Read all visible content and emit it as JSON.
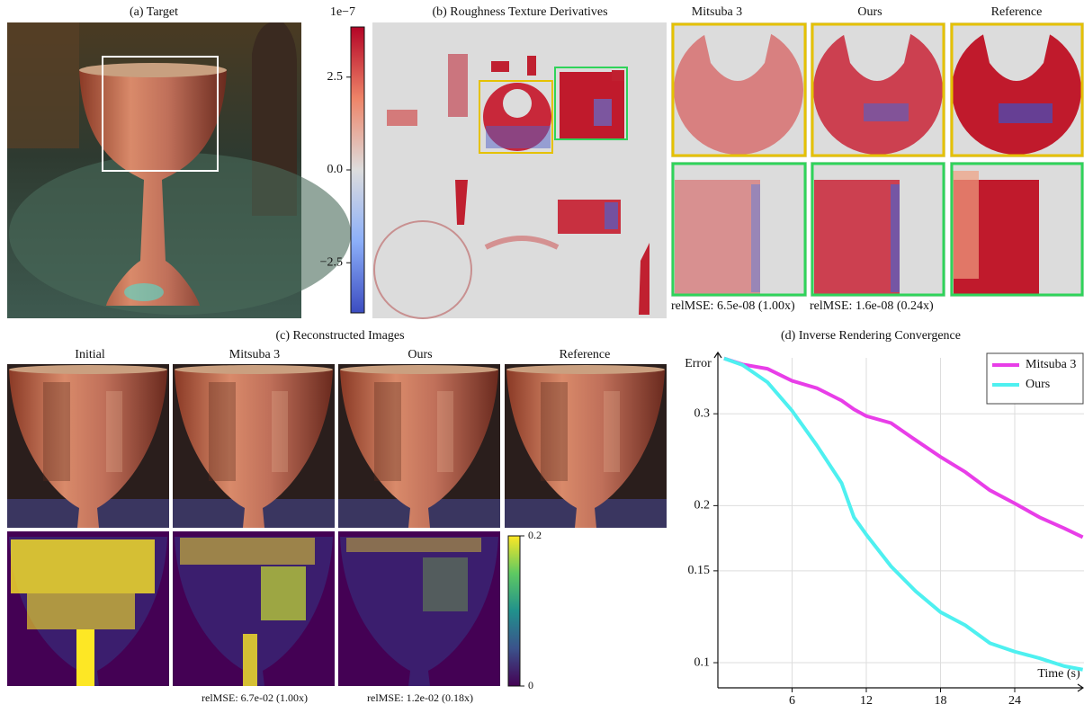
{
  "panels": {
    "target": {
      "title": "(a) Target"
    },
    "derivative_colorbar": {
      "label": "1e−7",
      "lim": [
        -3.85,
        3.85
      ],
      "ticks": [
        2.5,
        {
          "value": 0,
          "label": "0.0"
        },
        {
          "value": -2.5,
          "label": "−2.5"
        }
      ]
    },
    "derivatives": {
      "title": "(b) Roughness Texture Derivatives",
      "crop_columns": [
        "Mitsuba 3",
        "Ours",
        "Reference"
      ],
      "crop_metrics": [
        "relMSE: 6.5e-08 (1.00x)",
        "relMSE: 1.6e-08 (0.24x)"
      ]
    },
    "reconstruction": {
      "title": "(c) Reconstructed Images",
      "columns": [
        "Initial",
        "Mitsuba 3",
        "Ours",
        "Reference"
      ],
      "error_colorbar": {
        "lim": [
          0,
          0.2
        ],
        "ticks": [
          0.2,
          0
        ]
      },
      "metrics": [
        "relMSE: 6.7e-02 (1.00x)",
        "relMSE: 1.2e-02 (0.18x)"
      ]
    }
  },
  "chart_data": {
    "type": "line",
    "title": "(d) Inverse Rendering Convergence",
    "x_label": "Time (s)",
    "y_label": "Error",
    "x": [
      0.5,
      2,
      4,
      6,
      8,
      10,
      11,
      12,
      14,
      16,
      18,
      20,
      22,
      24,
      26,
      28,
      29.5
    ],
    "series": [
      {
        "name": "Mitsuba 3",
        "color": "#e83ee8",
        "values": [
          0.383,
          0.373,
          0.366,
          0.347,
          0.336,
          0.318,
          0.306,
          0.297,
          0.288,
          0.267,
          0.248,
          0.232,
          0.214,
          0.202,
          0.19,
          0.181,
          0.174
        ]
      },
      {
        "name": "Ours",
        "color": "#4ef0f0",
        "values": [
          0.383,
          0.372,
          0.345,
          0.304,
          0.261,
          0.221,
          0.19,
          0.176,
          0.153,
          0.137,
          0.125,
          0.118,
          0.109,
          0.105,
          0.102,
          0.0985,
          0.097
        ]
      }
    ],
    "xlim": [
      0,
      29.6
    ],
    "xticks": [
      6,
      12,
      18,
      24
    ],
    "ylim": [
      0.0895,
      0.384
    ],
    "yticks": [
      0.3,
      0.2,
      0.15,
      0.1
    ],
    "log_y": true,
    "grid": true,
    "legend": "upper right"
  }
}
